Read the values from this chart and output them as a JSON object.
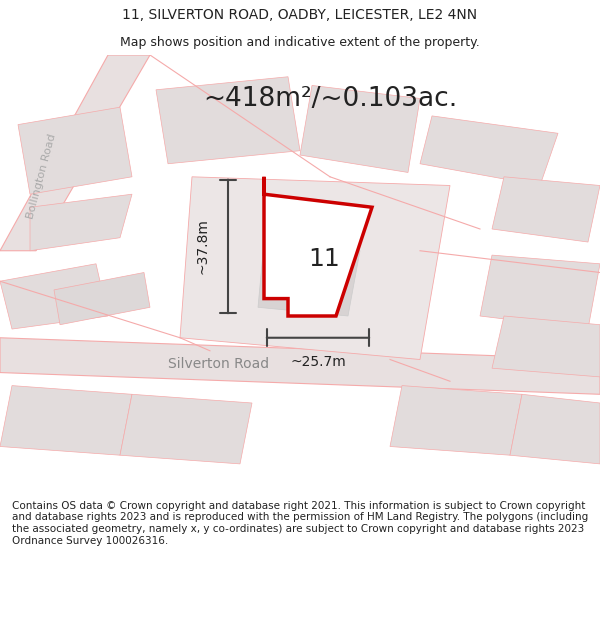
{
  "title_line1": "11, SILVERTON ROAD, OADBY, LEICESTER, LE2 4NN",
  "title_line2": "Map shows position and indicative extent of the property.",
  "area_text": "~418m²/~0.103ac.",
  "label_11": "11",
  "label_height": "~37.8m",
  "label_width": "~25.7m",
  "road_label_silverton": "Silverton Road",
  "road_label_bollington": "Bollington Road",
  "footer_text": "Contains OS data © Crown copyright and database right 2021. This information is subject to Crown copyright and database rights 2023 and is reproduced with the permission of HM Land Registry. The polygons (including the associated geometry, namely x, y co-ordinates) are subject to Crown copyright and database rights 2023 Ordnance Survey 100026316.",
  "bg_color": "#f5f0f0",
  "map_bg": "#f0eded",
  "block_color": "#e0dada",
  "road_line_color": "#f5aaaa",
  "highlight_poly_color": "#cc0000",
  "highlight_poly_fill": "#ffffff",
  "measure_line_color": "#444444",
  "title_fontsize": 10,
  "subtitle_fontsize": 9,
  "area_fontsize": 20,
  "footer_fontsize": 7.5,
  "map_xlim": [
    0,
    1
  ],
  "map_ylim": [
    0,
    1
  ]
}
